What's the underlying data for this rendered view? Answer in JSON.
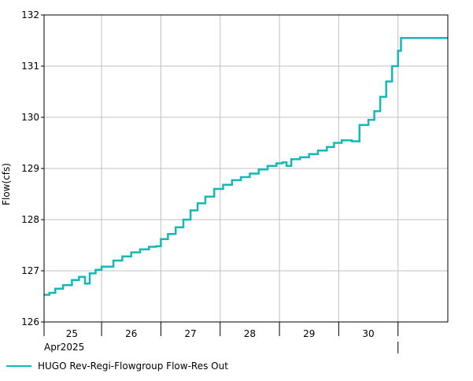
{
  "chart_data": {
    "type": "line",
    "step": true,
    "ylabel": "Flow(cfs)",
    "xlabel": "",
    "ylim": [
      126,
      132
    ],
    "y_ticks": [
      "126",
      "127",
      "128",
      "129",
      "130",
      "131",
      "132"
    ],
    "x_range_days": [
      24.53,
      31.34
    ],
    "x_day_ticks": [
      {
        "label": "25",
        "day": 25
      },
      {
        "label": "26",
        "day": 26
      },
      {
        "label": "27",
        "day": 27
      },
      {
        "label": "28",
        "day": 28
      },
      {
        "label": "29",
        "day": 29
      },
      {
        "label": "30",
        "day": 30
      }
    ],
    "month_label": "Apr2025",
    "grid": true,
    "legend_position": "bottom-left",
    "series": [
      {
        "name": "HUGO Rev-Regi-Flowgroup Flow-Res Out",
        "color": "#14b8b8",
        "points": [
          [
            24.53,
            126.53
          ],
          [
            24.62,
            126.57
          ],
          [
            24.72,
            126.65
          ],
          [
            24.85,
            126.72
          ],
          [
            25.0,
            126.82
          ],
          [
            25.12,
            126.88
          ],
          [
            25.22,
            126.75
          ],
          [
            25.3,
            126.95
          ],
          [
            25.4,
            127.02
          ],
          [
            25.5,
            127.08
          ],
          [
            25.7,
            127.2
          ],
          [
            25.85,
            127.28
          ],
          [
            26.0,
            127.36
          ],
          [
            26.15,
            127.42
          ],
          [
            26.3,
            127.47
          ],
          [
            26.42,
            127.48
          ],
          [
            26.5,
            127.62
          ],
          [
            26.62,
            127.72
          ],
          [
            26.75,
            127.85
          ],
          [
            26.88,
            128.0
          ],
          [
            27.0,
            128.18
          ],
          [
            27.12,
            128.32
          ],
          [
            27.25,
            128.45
          ],
          [
            27.4,
            128.6
          ],
          [
            27.55,
            128.68
          ],
          [
            27.7,
            128.77
          ],
          [
            27.85,
            128.83
          ],
          [
            28.0,
            128.9
          ],
          [
            28.15,
            128.98
          ],
          [
            28.3,
            129.05
          ],
          [
            28.45,
            129.1
          ],
          [
            28.55,
            129.12
          ],
          [
            28.62,
            129.05
          ],
          [
            28.7,
            129.18
          ],
          [
            28.85,
            129.22
          ],
          [
            29.0,
            129.28
          ],
          [
            29.15,
            129.35
          ],
          [
            29.3,
            129.42
          ],
          [
            29.42,
            129.5
          ],
          [
            29.55,
            129.55
          ],
          [
            29.72,
            129.53
          ],
          [
            29.8,
            129.53
          ],
          [
            29.85,
            129.85
          ],
          [
            29.92,
            129.85
          ],
          [
            30.0,
            129.95
          ],
          [
            30.1,
            130.12
          ],
          [
            30.2,
            130.4
          ],
          [
            30.3,
            130.7
          ],
          [
            30.4,
            131.0
          ],
          [
            30.5,
            131.3
          ],
          [
            30.55,
            131.55
          ],
          [
            31.34,
            131.55
          ]
        ]
      }
    ]
  }
}
